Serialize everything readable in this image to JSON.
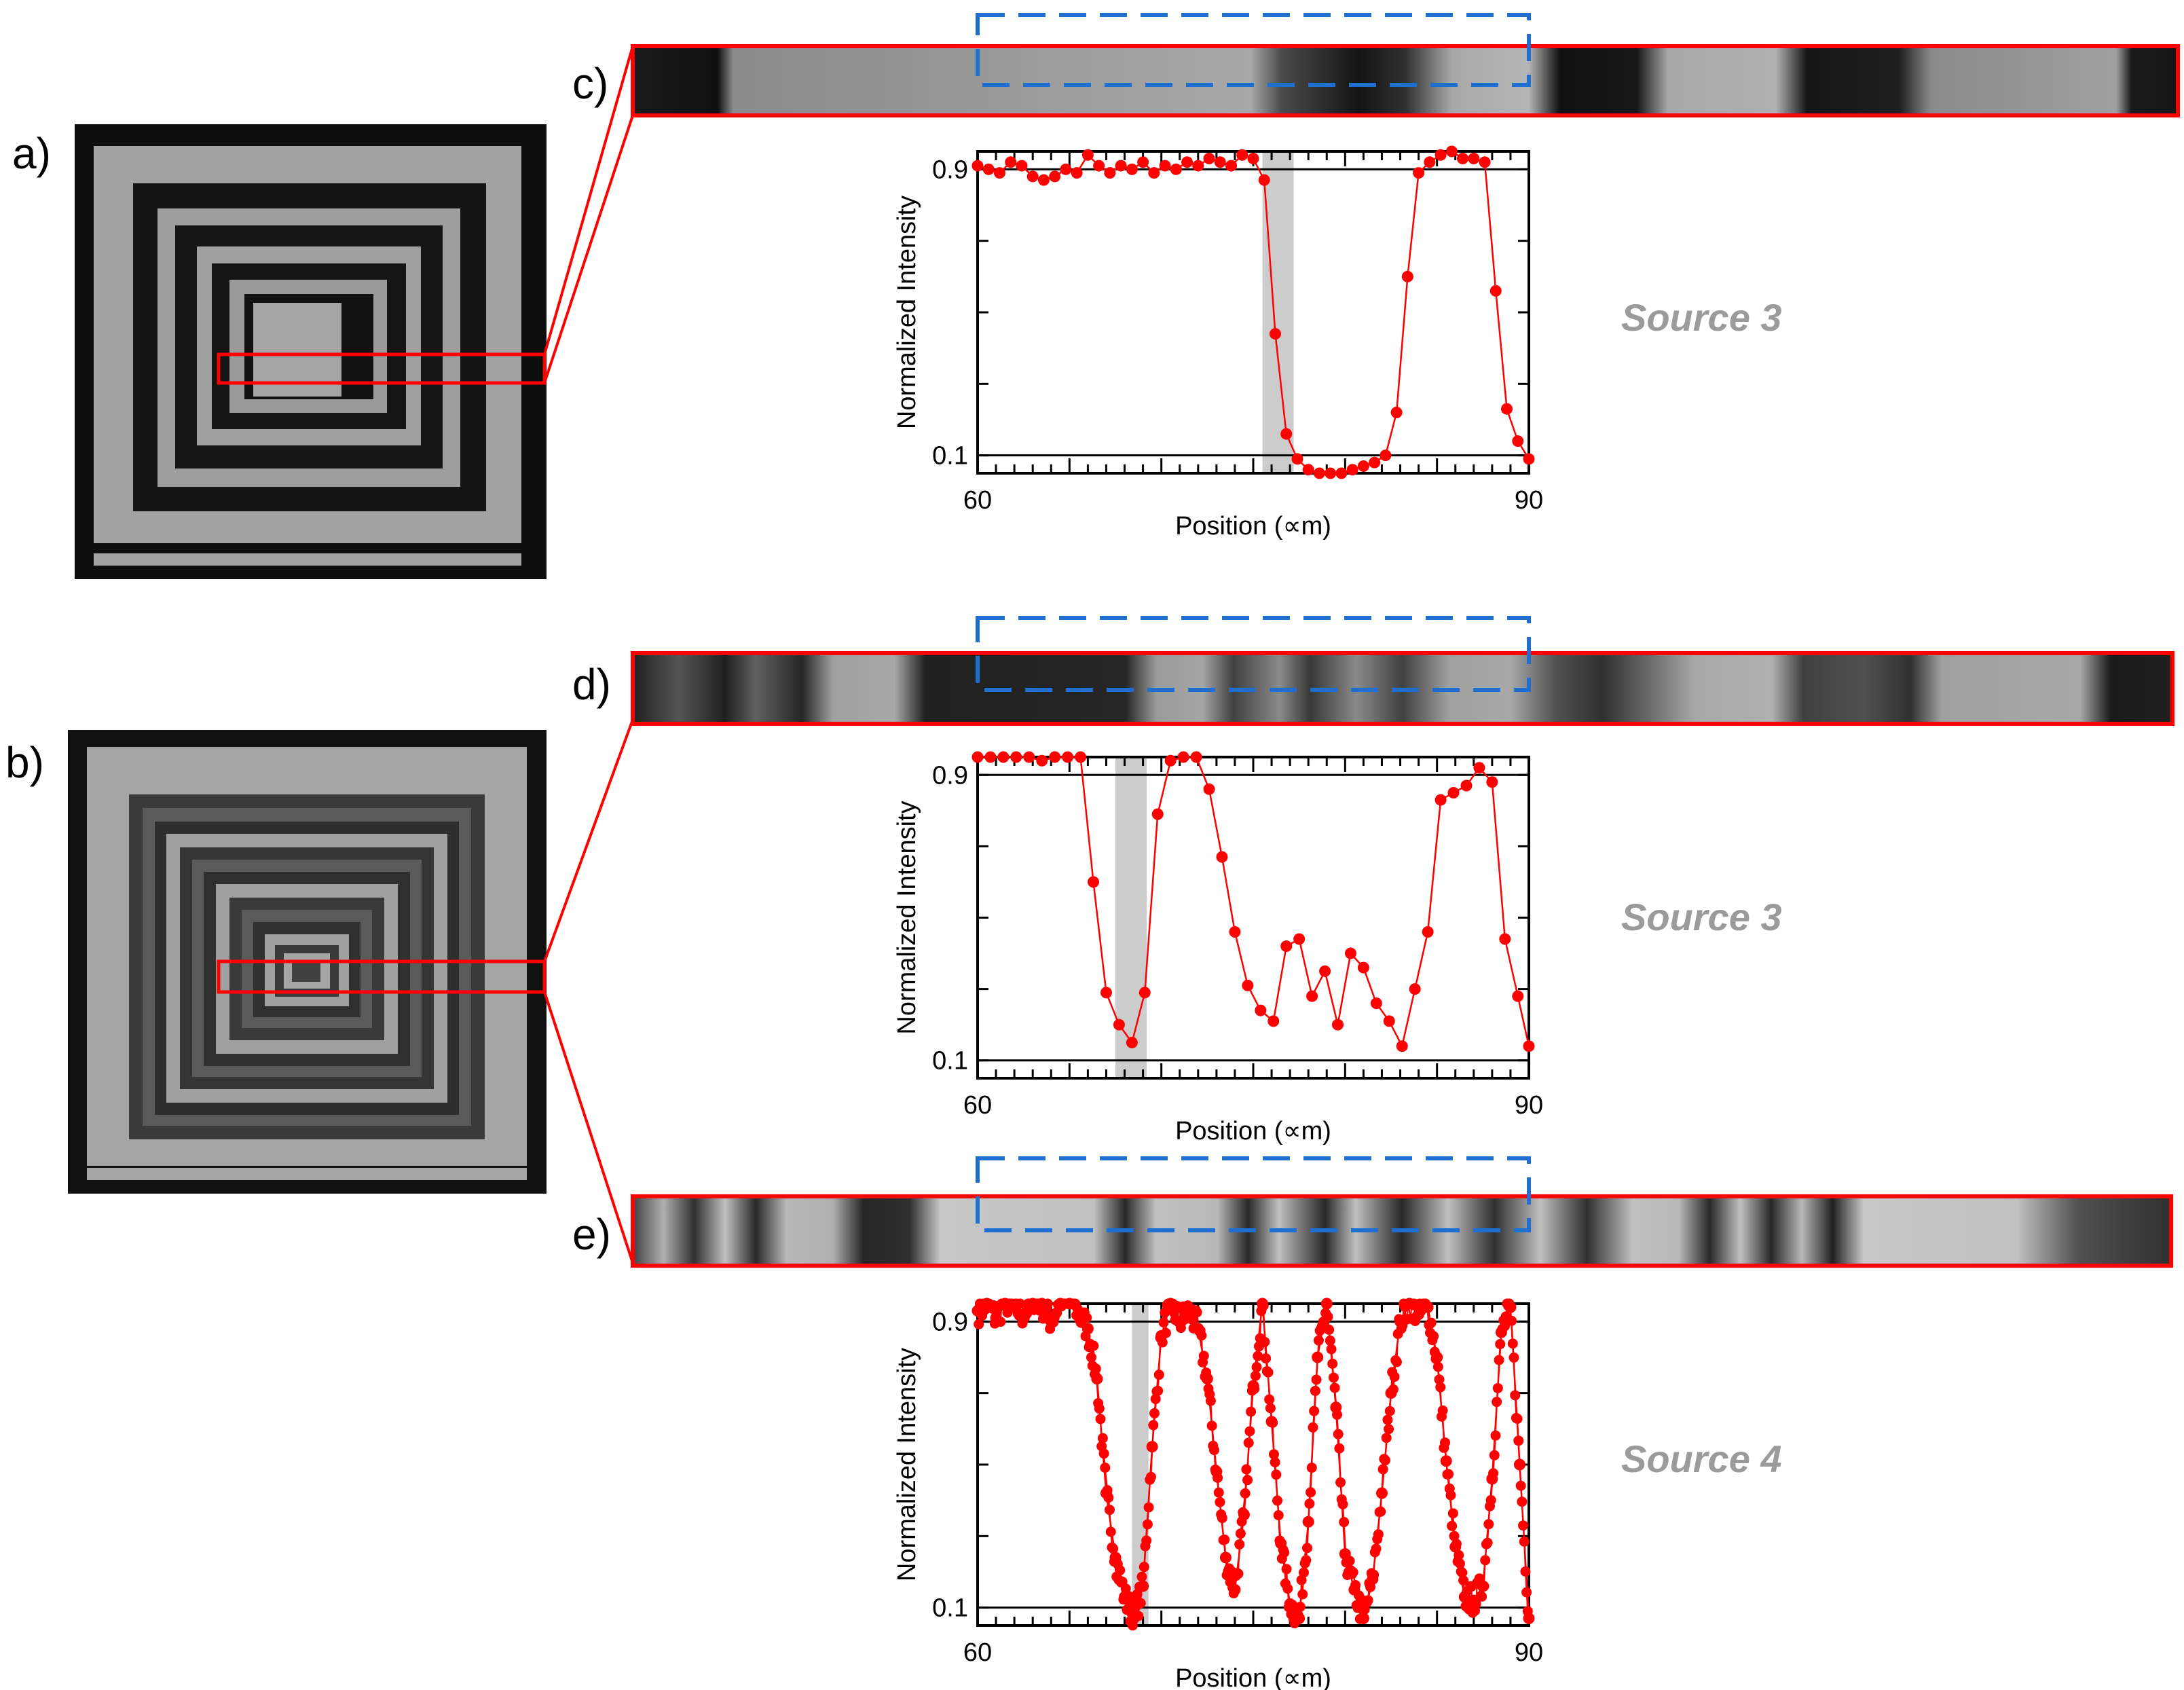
{
  "panels": {
    "a": "a)",
    "b": "b)",
    "c": "c)",
    "d": "d)",
    "e": "e)"
  },
  "colors": {
    "data": "#ff0000",
    "frame": "#ff0000",
    "dashed_box": "#1f6fd0",
    "highlight_band": "#cccccc",
    "source_text": "#9b9b9b"
  },
  "chart_data": [
    {
      "type": "line",
      "panel": "c",
      "source_label": "Source 3",
      "xlabel": "Position (∝m)",
      "ylabel": "Normalized Intensity",
      "xlim": [
        60,
        90
      ],
      "ylim": [
        0.05,
        0.95
      ],
      "x_tick_labels": [
        "60",
        "90"
      ],
      "y_tick_labels": [
        "0.1",
        "0.9"
      ],
      "reference_lines": [
        0.1,
        0.9
      ],
      "highlight_band": [
        75.5,
        77.2
      ],
      "series": [
        {
          "x": [
            60,
            60.6,
            61.2,
            61.8,
            62.4,
            63,
            63.6,
            64.2,
            64.8,
            65.4,
            66,
            66.6,
            67.2,
            67.8,
            68.4,
            69,
            69.6,
            70.2,
            70.8,
            71.4,
            72,
            72.6,
            73.2,
            73.8,
            74.4,
            75,
            75.6,
            76.2,
            76.8,
            77.4,
            78,
            78.6,
            79.2,
            79.8,
            80.4,
            81,
            81.6,
            82.2,
            82.8,
            83.4,
            84,
            84.6,
            85.2,
            85.8,
            86.4,
            87,
            87.6,
            88.2,
            88.8,
            89.4,
            90
          ],
          "y": [
            0.91,
            0.9,
            0.89,
            0.92,
            0.91,
            0.88,
            0.87,
            0.88,
            0.9,
            0.89,
            0.94,
            0.91,
            0.89,
            0.91,
            0.9,
            0.92,
            0.89,
            0.91,
            0.9,
            0.92,
            0.91,
            0.93,
            0.92,
            0.91,
            0.94,
            0.93,
            0.87,
            0.44,
            0.16,
            0.09,
            0.06,
            0.05,
            0.05,
            0.05,
            0.06,
            0.07,
            0.08,
            0.1,
            0.22,
            0.6,
            0.89,
            0.92,
            0.94,
            0.95,
            0.93,
            0.93,
            0.92,
            0.56,
            0.23,
            0.14,
            0.09
          ]
        }
      ]
    },
    {
      "type": "line",
      "panel": "d",
      "source_label": "Source 3",
      "xlabel": "Position (∝m)",
      "ylabel": "Normalized Intensity",
      "xlim": [
        60,
        90
      ],
      "ylim": [
        0.05,
        0.95
      ],
      "x_tick_labels": [
        "60",
        "90"
      ],
      "y_tick_labels": [
        "0.1",
        "0.9"
      ],
      "reference_lines": [
        0.1,
        0.9
      ],
      "highlight_band": [
        67.5,
        69.2
      ],
      "series": [
        {
          "x": [
            60,
            60.7,
            61.4,
            62.1,
            62.8,
            63.5,
            64.2,
            64.9,
            65.6,
            66.3,
            67,
            67.7,
            68.4,
            69.1,
            69.8,
            70.5,
            71.2,
            71.9,
            72.6,
            73.3,
            74,
            74.7,
            75.4,
            76.1,
            76.8,
            77.5,
            78.2,
            78.9,
            79.6,
            80.3,
            81,
            81.7,
            82.4,
            83.1,
            83.8,
            84.5,
            85.2,
            85.9,
            86.6,
            87.3,
            88,
            88.7,
            89.4,
            90
          ],
          "y": [
            0.95,
            0.95,
            0.97,
            0.97,
            0.96,
            0.94,
            0.96,
            0.95,
            0.98,
            0.6,
            0.29,
            0.2,
            0.15,
            0.29,
            0.79,
            0.94,
            0.95,
            0.96,
            0.86,
            0.67,
            0.46,
            0.31,
            0.24,
            0.21,
            0.42,
            0.44,
            0.28,
            0.35,
            0.2,
            0.4,
            0.36,
            0.26,
            0.21,
            0.14,
            0.3,
            0.46,
            0.83,
            0.85,
            0.87,
            0.92,
            0.88,
            0.44,
            0.28,
            0.14
          ]
        }
      ]
    },
    {
      "type": "scatter",
      "panel": "e",
      "source_label": "Source 4",
      "xlabel": "Position (∝m)",
      "ylabel": "Normalized Intensity",
      "xlim": [
        60,
        90
      ],
      "ylim": [
        0.05,
        0.95
      ],
      "x_tick_labels": [
        "60",
        "90"
      ],
      "y_tick_labels": [
        "0.1",
        "0.9"
      ],
      "reference_lines": [
        0.1,
        0.9
      ],
      "highlight_band": [
        68.4,
        69.3
      ],
      "series": [
        {
          "x": [
            60,
            60.5,
            61,
            61.5,
            62,
            62.5,
            63,
            63.5,
            64,
            64.5,
            65,
            65.5,
            66,
            66.5,
            67,
            67.5,
            68,
            68.5,
            69,
            69.5,
            70,
            70.5,
            71,
            71.5,
            72,
            72.5,
            73,
            73.5,
            74,
            74.5,
            75,
            75.5,
            76,
            76.5,
            77,
            77.5,
            78,
            78.5,
            79,
            79.5,
            80,
            80.5,
            81,
            81.5,
            82,
            82.5,
            83,
            83.5,
            84,
            84.5,
            85,
            85.5,
            86,
            86.5,
            87,
            87.5,
            88,
            88.5,
            89,
            89.5,
            90
          ],
          "y": [
            0.93,
            0.95,
            0.91,
            0.96,
            0.94,
            0.92,
            0.97,
            0.95,
            0.9,
            0.96,
            0.99,
            0.92,
            0.88,
            0.74,
            0.42,
            0.24,
            0.13,
            0.07,
            0.16,
            0.55,
            0.86,
            0.95,
            0.9,
            0.93,
            0.88,
            0.74,
            0.48,
            0.24,
            0.15,
            0.36,
            0.72,
            0.95,
            0.62,
            0.28,
            0.11,
            0.07,
            0.34,
            0.8,
            0.95,
            0.66,
            0.25,
            0.15,
            0.07,
            0.18,
            0.42,
            0.7,
            0.9,
            0.95,
            0.92,
            0.94,
            0.8,
            0.51,
            0.27,
            0.13,
            0.12,
            0.16,
            0.46,
            0.87,
            0.94,
            0.5,
            0.07
          ]
        }
      ]
    }
  ]
}
